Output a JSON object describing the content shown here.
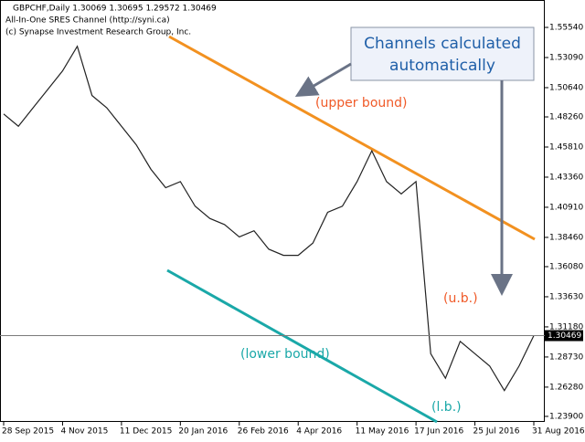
{
  "chart_data": {
    "type": "line",
    "header": [
      "GBPCHF,Daily  1.30069 1.30695 1.29572 1.30469",
      "All-In-One SRES Channel (http://syni.ca)",
      "(c) Synapse Investment Research Group, Inc."
    ],
    "callout": [
      "Channels calculated",
      "automatically"
    ],
    "annotations": {
      "upper_bound": "(upper bound)",
      "ub": "(u.b.)",
      "lower_bound": "(lower bound)",
      "lb": "(l.b.)"
    },
    "categories": [
      "28 Sep 2015",
      null,
      null,
      null,
      "4 Nov 2015",
      null,
      null,
      null,
      "11 Dec 2015",
      null,
      null,
      null,
      "20 Jan 2016",
      null,
      null,
      null,
      "26 Feb 2016",
      null,
      null,
      null,
      "4 Apr 2016",
      null,
      null,
      null,
      "11 May 2016",
      null,
      null,
      null,
      "17 Jun 2016",
      null,
      null,
      null,
      "25 Jul 2016",
      null,
      null,
      null,
      "31 Aug 2016"
    ],
    "values": [
      1.485,
      1.475,
      1.49,
      1.505,
      1.52,
      1.54,
      1.5,
      1.49,
      1.475,
      1.46,
      1.44,
      1.425,
      1.43,
      1.41,
      1.4,
      1.395,
      1.385,
      1.39,
      1.375,
      1.37,
      1.37,
      1.38,
      1.405,
      1.41,
      1.43,
      1.455,
      1.43,
      1.42,
      1.43,
      1.29,
      1.27,
      1.3,
      1.29,
      1.28,
      1.26,
      1.28,
      1.30469
    ],
    "color": "#222222",
    "last_price": {
      "value": 1.30469,
      "label": "1.30469"
    },
    "ylim": [
      1.2345,
      1.5777
    ],
    "yticks": [
      {
        "value": 1.5554,
        "label": "1.55540"
      },
      {
        "value": 1.5309,
        "label": "1.53090"
      },
      {
        "value": 1.5064,
        "label": "1.50640"
      },
      {
        "value": 1.4826,
        "label": "1.48260"
      },
      {
        "value": 1.4581,
        "label": "1.45810"
      },
      {
        "value": 1.4336,
        "label": "1.43360"
      },
      {
        "value": 1.4091,
        "label": "1.40910"
      },
      {
        "value": 1.3846,
        "label": "1.38460"
      },
      {
        "value": 1.3608,
        "label": "1.36080"
      },
      {
        "value": 1.3363,
        "label": "1.33630"
      },
      {
        "value": 1.3118,
        "label": "1.31180"
      },
      {
        "value": 1.2873,
        "label": "1.28730"
      },
      {
        "value": 1.2628,
        "label": "1.26280"
      },
      {
        "value": 1.239,
        "label": "1.23900"
      }
    ]
  }
}
